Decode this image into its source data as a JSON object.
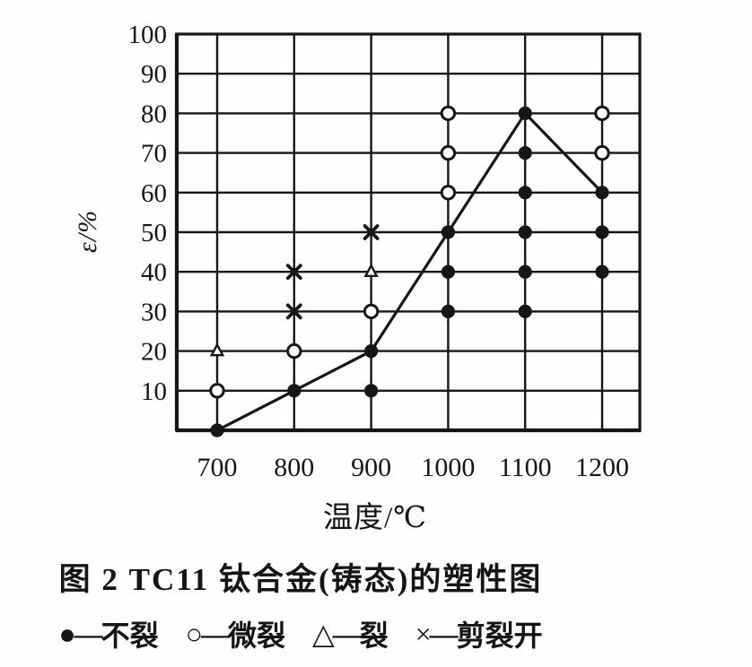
{
  "figure": {
    "caption": "图 2  TC11 钛合金(铸态)的塑性图"
  },
  "chart_data": {
    "type": "scatter",
    "title": "图 2  TC11 钛合金(铸态)的塑性图",
    "xlabel": "温度/℃",
    "ylabel": "ε/%",
    "xlim": [
      648,
      1249
    ],
    "ylim": [
      0,
      100
    ],
    "x_ticks": [
      700,
      800,
      900,
      1000,
      1100,
      1200
    ],
    "y_ticks": [
      10,
      20,
      30,
      40,
      50,
      60,
      70,
      80,
      90,
      100
    ],
    "grid": true,
    "legend_position": "bottom",
    "series": [
      {
        "name": "不裂",
        "marker": "filled-circle",
        "points": [
          [
            700,
            0
          ],
          [
            800,
            10
          ],
          [
            900,
            10
          ],
          [
            900,
            20
          ],
          [
            1000,
            30
          ],
          [
            1000,
            40
          ],
          [
            1000,
            50
          ],
          [
            1100,
            30
          ],
          [
            1100,
            40
          ],
          [
            1100,
            50
          ],
          [
            1100,
            60
          ],
          [
            1100,
            70
          ],
          [
            1100,
            80
          ],
          [
            1200,
            40
          ],
          [
            1200,
            50
          ],
          [
            1200,
            60
          ]
        ]
      },
      {
        "name": "微裂",
        "marker": "open-circle",
        "points": [
          [
            700,
            10
          ],
          [
            800,
            20
          ],
          [
            900,
            30
          ],
          [
            1000,
            60
          ],
          [
            1000,
            70
          ],
          [
            1000,
            80
          ],
          [
            1200,
            70
          ],
          [
            1200,
            80
          ]
        ]
      },
      {
        "name": "裂",
        "marker": "open-triangle",
        "points": [
          [
            700,
            20
          ],
          [
            900,
            40
          ]
        ]
      },
      {
        "name": "剪裂开",
        "marker": "x-cross",
        "points": [
          [
            800,
            30
          ],
          [
            800,
            40
          ],
          [
            900,
            50
          ]
        ]
      }
    ],
    "boundary_line": [
      [
        700,
        0
      ],
      [
        800,
        10
      ],
      [
        900,
        20
      ],
      [
        1000,
        50
      ],
      [
        1100,
        80
      ],
      [
        1200,
        60
      ]
    ]
  },
  "legend": {
    "separator": "—",
    "items": [
      {
        "symbol": "●",
        "label": "不裂",
        "marker": "filled-circle"
      },
      {
        "symbol": "○",
        "label": "微裂",
        "marker": "open-circle"
      },
      {
        "symbol": "△",
        "label": "裂",
        "marker": "open-triangle"
      },
      {
        "symbol": "×",
        "label": "剪裂开",
        "marker": "x-cross"
      }
    ]
  }
}
